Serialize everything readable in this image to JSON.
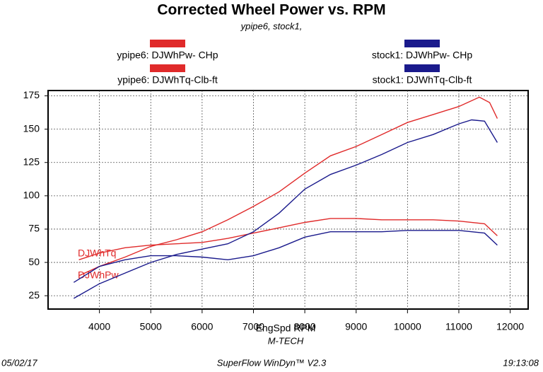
{
  "chart_data": {
    "type": "line",
    "title": "Corrected Wheel Power vs. RPM",
    "subtitle": "ypipe6, stock1,",
    "x_label": "EngSpd  RPM",
    "x_sublabel": "M-TECH",
    "annotations": [
      "DJWhTq",
      "DJWhPw"
    ],
    "footer": {
      "date": "05/02/17",
      "software": "SuperFlow WinDyn™ V2.3",
      "time": "19:13:08"
    },
    "xlim": [
      3000,
      12350
    ],
    "ylim": [
      15,
      179
    ],
    "xticks": [
      4000,
      5000,
      6000,
      7000,
      8000,
      9000,
      10000,
      11000,
      12000
    ],
    "yticks": [
      25,
      50,
      75,
      100,
      125,
      150,
      175
    ],
    "grid": true,
    "series": [
      {
        "name": "ypipe6: DJWhPw- CHp",
        "color": "#e02a2a",
        "x": [
          3600,
          4000,
          4500,
          5000,
          5500,
          6000,
          6500,
          7000,
          7500,
          8000,
          8500,
          9000,
          9500,
          10000,
          10500,
          11000,
          11400,
          11600,
          11750
        ],
        "values": [
          40,
          47,
          54,
          62,
          67,
          73,
          82,
          92,
          103,
          117,
          130,
          137,
          146,
          155,
          161,
          167,
          174,
          170,
          158
        ]
      },
      {
        "name": "ypipe6: DJWhTq-Clb-ft",
        "color": "#e02a2a",
        "x": [
          3600,
          4000,
          4500,
          5000,
          5500,
          6000,
          6500,
          7000,
          7500,
          8000,
          8500,
          9000,
          9500,
          10000,
          10500,
          11000,
          11500,
          11750
        ],
        "values": [
          52,
          57,
          61,
          63,
          64,
          65,
          68,
          72,
          76,
          80,
          83,
          83,
          82,
          82,
          82,
          81,
          79,
          70
        ]
      },
      {
        "name": "stock1: DJWhPw- CHp",
        "color": "#1a1a8c",
        "x": [
          3500,
          4000,
          4500,
          5000,
          5500,
          6000,
          6500,
          7000,
          7500,
          8000,
          8500,
          9000,
          9500,
          10000,
          10500,
          11000,
          11250,
          11500,
          11750
        ],
        "values": [
          23,
          34,
          42,
          50,
          56,
          60,
          64,
          73,
          87,
          105,
          116,
          123,
          131,
          140,
          146,
          154,
          157,
          156,
          140
        ]
      },
      {
        "name": "stock1: DJWhTq-Clb-ft",
        "color": "#1a1a8c",
        "x": [
          3500,
          4000,
          4500,
          5000,
          5500,
          6000,
          6500,
          7000,
          7500,
          8000,
          8500,
          9000,
          9500,
          10000,
          10500,
          11000,
          11500,
          11750
        ],
        "values": [
          35,
          47,
          52,
          55,
          55,
          54,
          52,
          55,
          61,
          69,
          73,
          73,
          73,
          74,
          74,
          74,
          72,
          63
        ]
      }
    ]
  }
}
